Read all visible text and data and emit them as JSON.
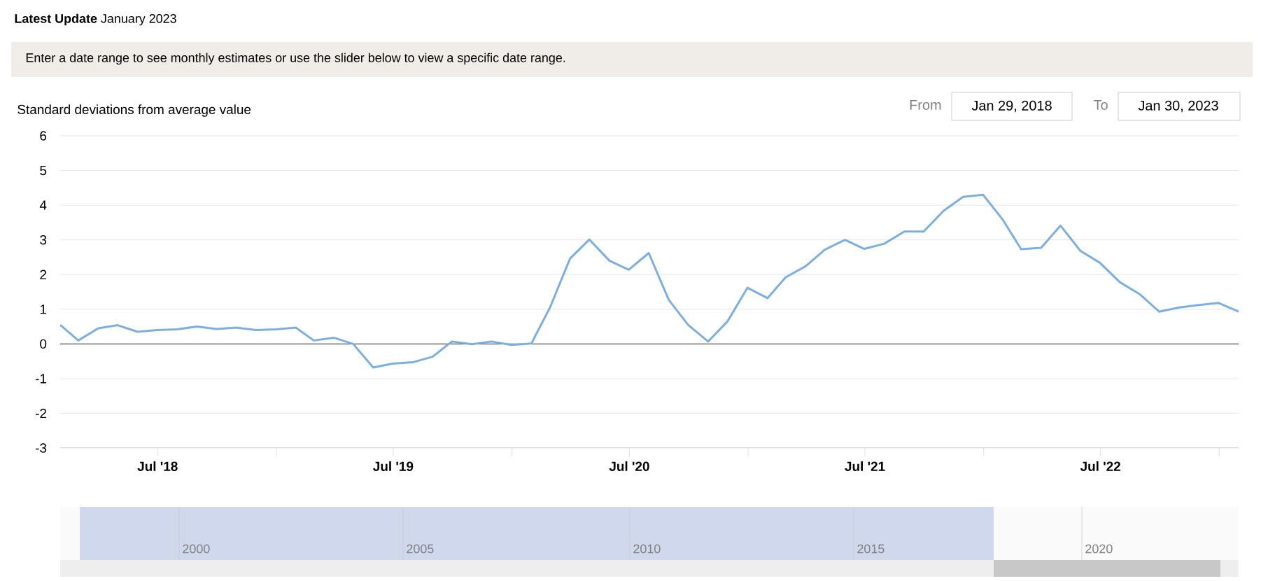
{
  "chart_data": {
    "type": "line",
    "ylabel": "Standard deviations from average value",
    "annotations": [
      "**Latest Update** January 2023",
      "Enter a date range to see monthly estimates or use the slider below to view a specific date range.",
      "From",
      "Jan 29, 2018",
      "To",
      "Jan 30, 2023",
      "2000",
      "2005",
      "2010",
      "2015",
      "2020"
    ],
    "x": [
      "2018-01-31",
      "2018-02-28",
      "2018-03-31",
      "2018-04-30",
      "2018-05-31",
      "2018-06-30",
      "2018-07-31",
      "2018-08-31",
      "2018-09-30",
      "2018-10-31",
      "2018-11-30",
      "2018-12-31",
      "2019-01-31",
      "2019-02-28",
      "2019-03-31",
      "2019-04-30",
      "2019-05-31",
      "2019-06-30",
      "2019-07-31",
      "2019-08-31",
      "2019-09-30",
      "2019-10-31",
      "2019-11-30",
      "2019-12-31",
      "2020-01-31",
      "2020-02-29",
      "2020-03-31",
      "2020-04-30",
      "2020-05-31",
      "2020-06-30",
      "2020-07-31",
      "2020-08-31",
      "2020-09-30",
      "2020-10-31",
      "2020-11-30",
      "2020-12-31",
      "2021-01-31",
      "2021-02-28",
      "2021-03-31",
      "2021-04-30",
      "2021-05-31",
      "2021-06-30",
      "2021-07-31",
      "2021-08-31",
      "2021-09-30",
      "2021-10-31",
      "2021-11-30",
      "2021-12-31",
      "2022-01-31",
      "2022-02-28",
      "2022-03-31",
      "2022-04-30",
      "2022-05-31",
      "2022-06-30",
      "2022-07-31",
      "2022-08-31",
      "2022-09-30",
      "2022-10-31",
      "2022-11-30",
      "2022-12-31",
      "2023-01-31"
    ],
    "series": [
      {
        "color": "#7cafe0",
        "values": [
          0.55,
          0.1,
          0.45,
          0.54,
          0.35,
          0.4,
          0.42,
          0.5,
          0.43,
          0.47,
          0.4,
          0.42,
          0.47,
          0.1,
          0.18,
          0.0,
          -0.68,
          -0.57,
          -0.53,
          -0.37,
          0.07,
          -0.01,
          0.07,
          -0.03,
          0.01,
          1.05,
          2.46,
          3.01,
          2.4,
          2.14,
          2.62,
          1.27,
          0.55,
          0.07,
          0.65,
          1.62,
          1.32,
          1.92,
          2.24,
          2.72,
          3.0,
          2.74,
          2.89,
          3.24,
          3.24,
          3.84,
          4.24,
          4.3,
          3.57,
          2.73,
          2.77,
          3.41,
          2.68,
          2.34,
          1.78,
          1.43,
          0.93,
          1.05,
          1.12,
          1.18,
          0.93
        ]
      }
    ],
    "xlim": [
      "2018-01-31",
      "2023-01-31"
    ],
    "xticks": [
      {
        "value": "2018-07-01",
        "label": "Jul '18"
      },
      {
        "value": "2019-01-01",
        "label": null
      },
      {
        "value": "2019-07-01",
        "label": "Jul '19"
      },
      {
        "value": "2020-01-01",
        "label": null
      },
      {
        "value": "2020-07-01",
        "label": "Jul '20"
      },
      {
        "value": "2021-01-01",
        "label": null
      },
      {
        "value": "2021-07-01",
        "label": "Jul '21"
      },
      {
        "value": "2022-01-01",
        "label": null
      },
      {
        "value": "2022-07-01",
        "label": "Jul '22"
      },
      {
        "value": "2023-01-01",
        "label": null
      }
    ],
    "ylim": [
      -3,
      6
    ],
    "yticks": [
      -3,
      -2,
      -1,
      0,
      1,
      2,
      3,
      4,
      5,
      6
    ],
    "grid": "y",
    "line_style": "solid",
    "marker": "none",
    "ref_lines": [
      {
        "axis": "y",
        "value": 0,
        "color": "#000000"
      }
    ]
  }
}
